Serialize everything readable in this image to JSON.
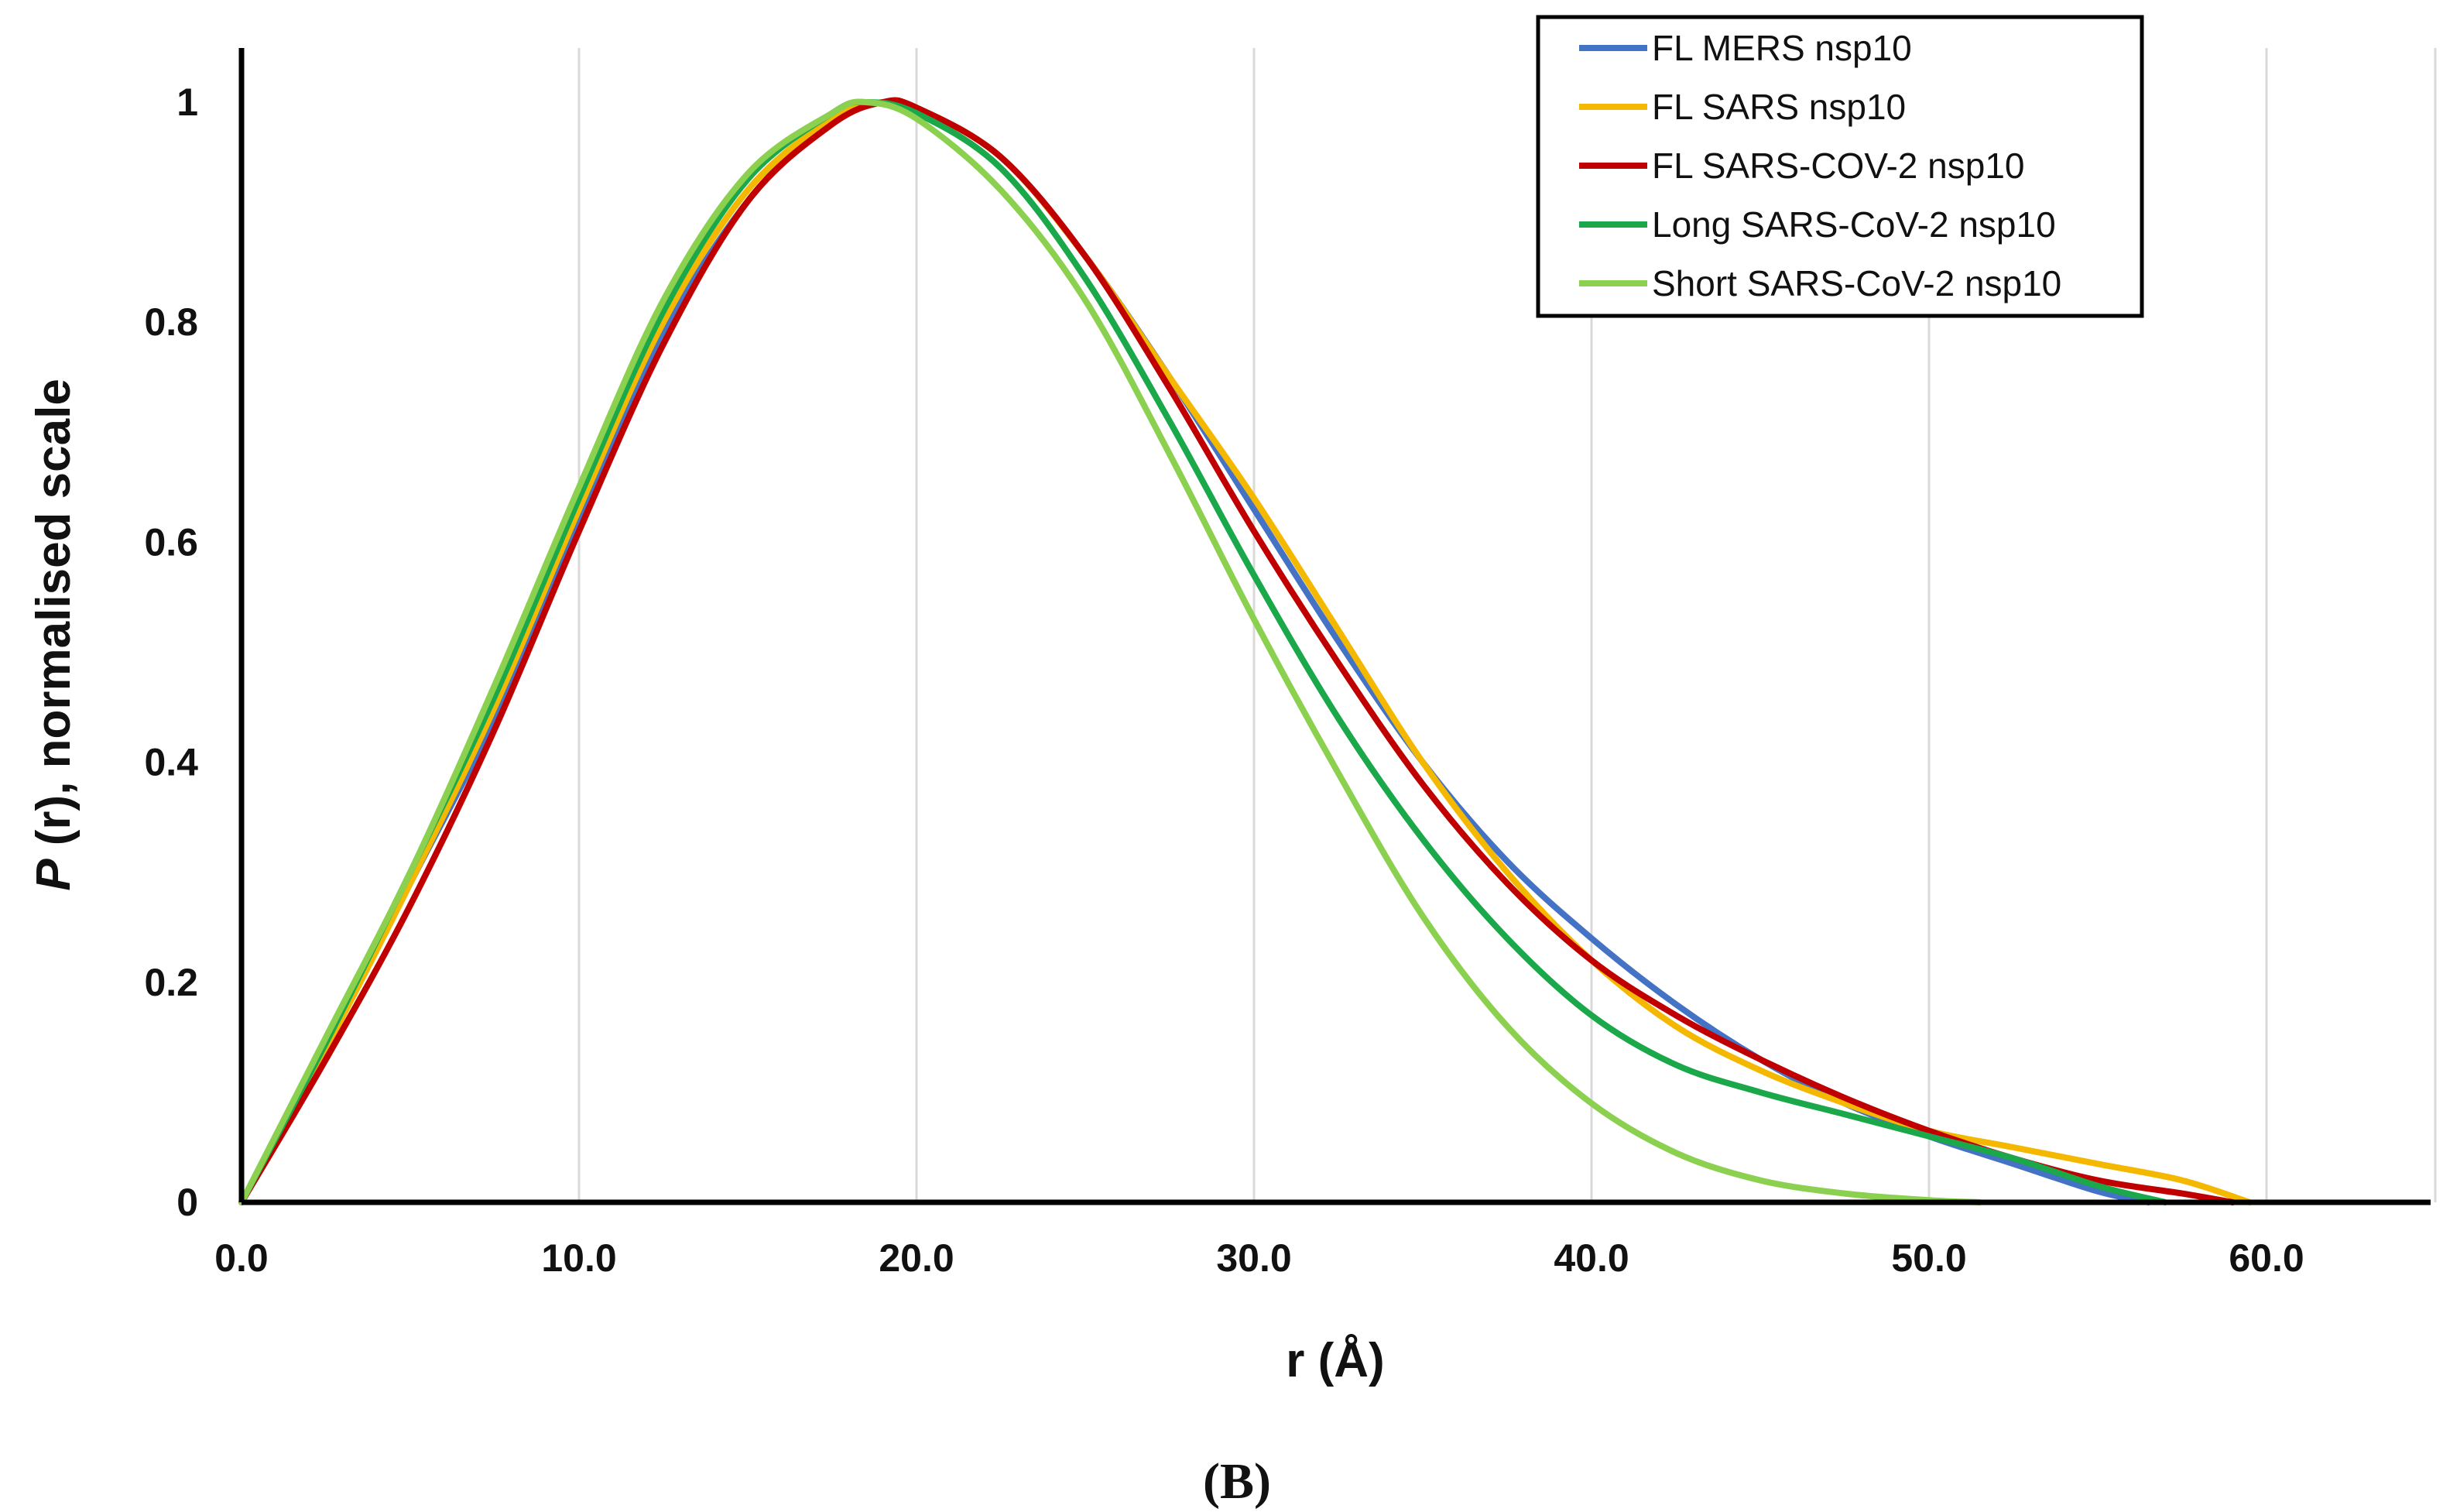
{
  "chart_data": {
    "type": "line",
    "title": "",
    "panel_label": "(B)",
    "xlabel": "r (Å)",
    "ylabel_italic": "P",
    "ylabel_rest": " (r), normalised scale",
    "xlim": [
      0,
      65
    ],
    "ylim": [
      0,
      1.05
    ],
    "xticks": [
      0,
      10,
      20,
      30,
      40,
      50,
      60
    ],
    "xtick_labels": [
      "0.0",
      "10.0",
      "20.0",
      "30.0",
      "40.0",
      "50.0",
      "60.0"
    ],
    "yticks": [
      0,
      0.2,
      0.4,
      0.6,
      0.8,
      1
    ],
    "ytick_labels": [
      "0",
      "0.2",
      "0.4",
      "0.6",
      "0.8",
      "1"
    ],
    "grid": "vertical",
    "legend_position": "top-right",
    "series": [
      {
        "name": "FL MERS nsp10",
        "color": "#4472C4",
        "x": [
          0,
          2.5,
          5,
          7.5,
          10,
          12.5,
          15,
          17.5,
          19,
          20,
          22.5,
          25,
          27.5,
          30,
          32.5,
          35,
          37.5,
          40,
          42.5,
          45,
          47.5,
          50,
          52.5,
          55,
          56.5
        ],
        "y": [
          0,
          0.14,
          0.29,
          0.44,
          0.62,
          0.79,
          0.91,
          0.985,
          1.0,
          0.995,
          0.95,
          0.86,
          0.75,
          0.63,
          0.51,
          0.4,
          0.31,
          0.24,
          0.18,
          0.13,
          0.09,
          0.06,
          0.035,
          0.01,
          0
        ]
      },
      {
        "name": "FL SARS nsp10",
        "color": "#F5B800",
        "x": [
          0,
          2.5,
          5,
          7.5,
          10,
          12.5,
          15,
          17.5,
          19,
          20,
          22.5,
          25,
          27.5,
          30,
          32.5,
          35,
          37.5,
          40,
          42.5,
          45,
          47.5,
          50,
          52.5,
          55,
          57.5,
          59.5
        ],
        "y": [
          0,
          0.14,
          0.29,
          0.45,
          0.63,
          0.8,
          0.92,
          0.985,
          1.0,
          0.995,
          0.95,
          0.86,
          0.75,
          0.64,
          0.52,
          0.4,
          0.3,
          0.22,
          0.16,
          0.12,
          0.09,
          0.065,
          0.05,
          0.035,
          0.02,
          0
        ]
      },
      {
        "name": "FL SARS-COV-2 nsp10",
        "color": "#C00000",
        "x": [
          0,
          2.5,
          5,
          7.5,
          10,
          12.5,
          15,
          17.5,
          19,
          20,
          22.5,
          25,
          27.5,
          30,
          32.5,
          35,
          37.5,
          40,
          42.5,
          45,
          47.5,
          50,
          52.5,
          55,
          57.5,
          59
        ],
        "y": [
          0,
          0.13,
          0.27,
          0.43,
          0.61,
          0.78,
          0.91,
          0.98,
          1.0,
          0.995,
          0.95,
          0.86,
          0.74,
          0.61,
          0.49,
          0.38,
          0.29,
          0.22,
          0.17,
          0.13,
          0.095,
          0.065,
          0.04,
          0.02,
          0.008,
          0
        ]
      },
      {
        "name": "Long SARS-CoV-2 nsp10",
        "color": "#1AA84A",
        "x": [
          0,
          2.5,
          5,
          7.5,
          10,
          12.5,
          15,
          17.5,
          18.5,
          20,
          22.5,
          25,
          27.5,
          30,
          32.5,
          35,
          37.5,
          40,
          42.5,
          45,
          47.5,
          50,
          52.5,
          55,
          57
        ],
        "y": [
          0,
          0.145,
          0.3,
          0.46,
          0.64,
          0.81,
          0.93,
          0.99,
          1.0,
          0.99,
          0.94,
          0.84,
          0.71,
          0.57,
          0.44,
          0.33,
          0.24,
          0.17,
          0.125,
          0.1,
          0.08,
          0.06,
          0.04,
          0.015,
          0
        ]
      },
      {
        "name": "Short SARS-CoV-2 nsp10",
        "color": "#8CD050",
        "x": [
          0,
          2.5,
          5,
          7.5,
          10,
          12.5,
          15,
          17.5,
          18.5,
          20,
          22.5,
          25,
          27.5,
          30,
          32.5,
          35,
          37.5,
          40,
          42.5,
          45,
          47.5,
          50,
          51.5
        ],
        "y": [
          0,
          0.15,
          0.3,
          0.47,
          0.65,
          0.82,
          0.935,
          0.99,
          1.0,
          0.985,
          0.92,
          0.82,
          0.68,
          0.53,
          0.39,
          0.26,
          0.16,
          0.09,
          0.045,
          0.02,
          0.008,
          0.002,
          0
        ]
      }
    ]
  }
}
